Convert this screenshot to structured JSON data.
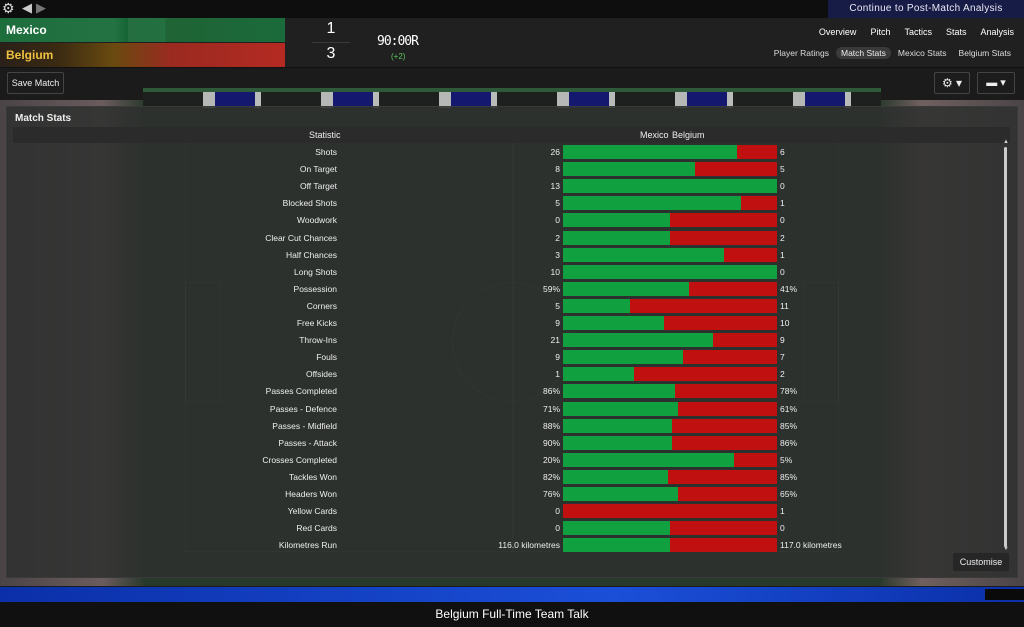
{
  "topbar": {
    "continue_label": "Continue to Post-Match Analysis",
    "settings_icon": "gear-icon",
    "back_icon": "back-arrow-icon",
    "forward_icon": "forward-arrow-icon"
  },
  "match": {
    "home": {
      "name": "Mexico",
      "score": "1"
    },
    "away": {
      "name": "Belgium",
      "score": "3"
    },
    "time": "90:00R",
    "added": "(+2)"
  },
  "nav": {
    "tabs": [
      "Overview",
      "Pitch",
      "Tactics",
      "Stats",
      "Analysis"
    ],
    "subtabs": [
      "Player Ratings",
      "Match Stats",
      "Mexico Stats",
      "Belgium Stats"
    ],
    "active_subtab": "Match Stats"
  },
  "toolbar": {
    "save_label": "Save Match",
    "options_icon": "gear-icon",
    "chat_icon": "speech-bubble-icon"
  },
  "panel": {
    "title": "Match Stats",
    "col_statistic": "Statistic",
    "col_home": "Mexico",
    "col_away": "Belgium",
    "customise_label": "Customise"
  },
  "colors": {
    "home_bar": "#10a040",
    "away_bar": "#c01010",
    "accent": "#171c46"
  },
  "stats": [
    {
      "label": "Shots",
      "home": "26",
      "away": "6",
      "share": 0.812
    },
    {
      "label": "On Target",
      "home": "8",
      "away": "5",
      "share": 0.615
    },
    {
      "label": "Off Target",
      "home": "13",
      "away": "0",
      "share": 1.0
    },
    {
      "label": "Blocked Shots",
      "home": "5",
      "away": "1",
      "share": 0.833
    },
    {
      "label": "Woodwork",
      "home": "0",
      "away": "0",
      "share": 0.5
    },
    {
      "label": "Clear Cut Chances",
      "home": "2",
      "away": "2",
      "share": 0.5
    },
    {
      "label": "Half Chances",
      "home": "3",
      "away": "1",
      "share": 0.75
    },
    {
      "label": "Long Shots",
      "home": "10",
      "away": "0",
      "share": 1.0
    },
    {
      "label": "Possession",
      "home": "59%",
      "away": "41%",
      "share": 0.59
    },
    {
      "label": "Corners",
      "home": "5",
      "away": "11",
      "share": 0.3125
    },
    {
      "label": "Free Kicks",
      "home": "9",
      "away": "10",
      "share": 0.474
    },
    {
      "label": "Throw-Ins",
      "home": "21",
      "away": "9",
      "share": 0.7
    },
    {
      "label": "Fouls",
      "home": "9",
      "away": "7",
      "share": 0.5625
    },
    {
      "label": "Offsides",
      "home": "1",
      "away": "2",
      "share": 0.333
    },
    {
      "label": "Passes Completed",
      "home": "86%",
      "away": "78%",
      "share": 0.524
    },
    {
      "label": "Passes - Defence",
      "home": "71%",
      "away": "61%",
      "share": 0.538
    },
    {
      "label": "Passes - Midfield",
      "home": "88%",
      "away": "85%",
      "share": 0.509
    },
    {
      "label": "Passes - Attack",
      "home": "90%",
      "away": "86%",
      "share": 0.511
    },
    {
      "label": "Crosses Completed",
      "home": "20%",
      "away": "5%",
      "share": 0.8
    },
    {
      "label": "Tackles Won",
      "home": "82%",
      "away": "85%",
      "share": 0.491
    },
    {
      "label": "Headers Won",
      "home": "76%",
      "away": "65%",
      "share": 0.539
    },
    {
      "label": "Yellow Cards",
      "home": "0",
      "away": "1",
      "share": 0.0
    },
    {
      "label": "Red Cards",
      "home": "0",
      "away": "0",
      "share": 0.5
    },
    {
      "label": "Kilometres Run",
      "home": "116.0 kilometres",
      "away": "117.0 kilometres",
      "share": 0.498
    }
  ],
  "footer": {
    "text": "Belgium Full-Time Team Talk"
  }
}
